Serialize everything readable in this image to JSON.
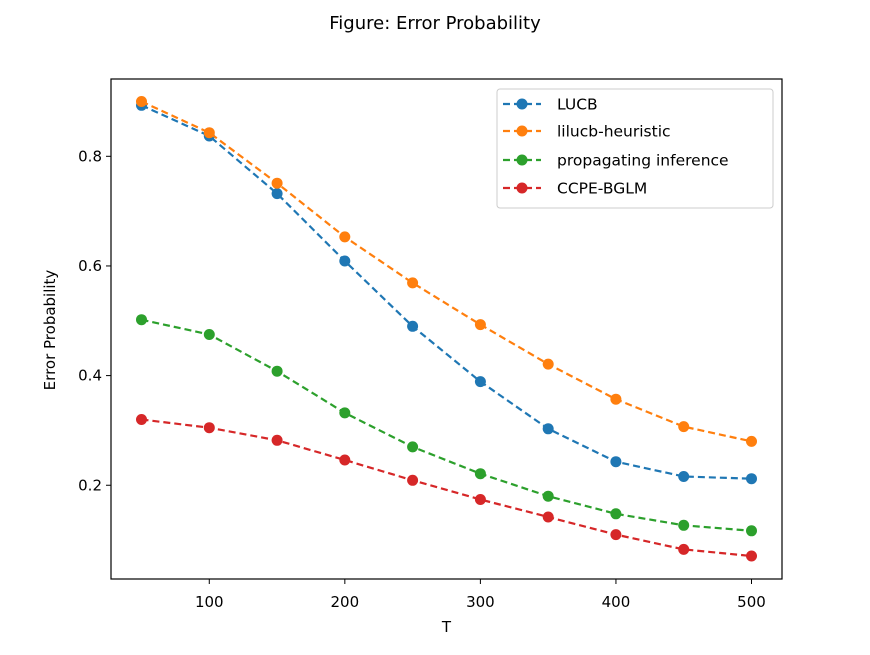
{
  "chart_data": {
    "type": "line",
    "title": "Figure: Error Probability",
    "xlabel": "T",
    "ylabel": "Error Probability",
    "x": [
      50,
      100,
      150,
      200,
      250,
      300,
      350,
      400,
      450,
      500
    ],
    "xticks": [
      100,
      200,
      300,
      400,
      500
    ],
    "yticks": [
      0.2,
      0.4,
      0.6,
      0.8
    ],
    "xlim": [
      27.5,
      522.5
    ],
    "ylim": [
      0.029,
      0.941
    ],
    "grid": false,
    "legend_position": "upper right",
    "line_style": "dashed",
    "marker": "circle",
    "series": [
      {
        "name": "LUCB",
        "color": "#1f77b4",
        "values": [
          0.893,
          0.837,
          0.732,
          0.609,
          0.49,
          0.389,
          0.303,
          0.243,
          0.216,
          0.212
        ]
      },
      {
        "name": "lilucb-heuristic",
        "color": "#ff7f0e",
        "values": [
          0.9,
          0.843,
          0.751,
          0.653,
          0.569,
          0.493,
          0.421,
          0.357,
          0.307,
          0.28
        ]
      },
      {
        "name": "propagating inference",
        "color": "#2ca02c",
        "values": [
          0.502,
          0.475,
          0.408,
          0.332,
          0.27,
          0.221,
          0.18,
          0.148,
          0.127,
          0.117
        ]
      },
      {
        "name": "CCPE-BGLM",
        "color": "#d62728",
        "values": [
          0.32,
          0.305,
          0.282,
          0.246,
          0.209,
          0.174,
          0.142,
          0.11,
          0.083,
          0.071
        ]
      }
    ]
  }
}
